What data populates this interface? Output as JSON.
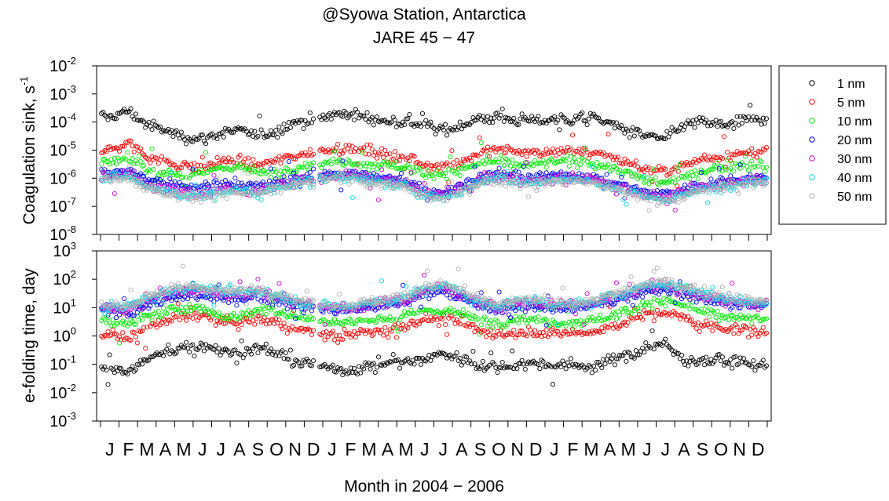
{
  "chart_data": {
    "type": "scatter",
    "title": "@Syowa Station, Antarctica",
    "subtitle": "JARE 45 − 47",
    "xlabel": "Month in 2004 − 2006",
    "month_labels": [
      "J",
      "F",
      "M",
      "A",
      "M",
      "J",
      "J",
      "A",
      "S",
      "O",
      "N",
      "D",
      "J",
      "F",
      "M",
      "A",
      "M",
      "J",
      "J",
      "A",
      "S",
      "O",
      "N",
      "D",
      "J",
      "F",
      "M",
      "A",
      "M",
      "J",
      "J",
      "A",
      "S",
      "O",
      "N",
      "D"
    ],
    "legend_position": "right",
    "legend": [
      {
        "name": "1 nm",
        "color": "#000000"
      },
      {
        "name": "5 nm",
        "color": "#ff0000"
      },
      {
        "name": "10 nm",
        "color": "#00ee00"
      },
      {
        "name": "20 nm",
        "color": "#0000ff"
      },
      {
        "name": "30 nm",
        "color": "#cc00cc"
      },
      {
        "name": "40 nm",
        "color": "#00dddd"
      },
      {
        "name": "50 nm",
        "color": "#b0b0b0"
      }
    ],
    "series_sizes_nm": [
      1,
      5,
      10,
      20,
      30,
      40,
      50
    ],
    "data_gaps": [
      [
        11.5,
        11.8
      ]
    ],
    "panels": [
      {
        "id": "coag",
        "ylabel": "Coagulation sink, s",
        "ylabel_sup": "-1",
        "yscale": "log",
        "ylim": [
          1e-08,
          0.01
        ],
        "ytick_labels": [
          {
            "base": "10",
            "exp": "-8"
          },
          {
            "base": "10",
            "exp": "-7"
          },
          {
            "base": "10",
            "exp": "-6"
          },
          {
            "base": "10",
            "exp": "-5"
          },
          {
            "base": "10",
            "exp": "-4"
          },
          {
            "base": "10",
            "exp": "-3"
          },
          {
            "base": "10",
            "exp": "-2"
          }
        ],
        "x": [
          0.5,
          1.5,
          2.5,
          3.5,
          4.5,
          5.5,
          6.5,
          7.5,
          8.5,
          9.5,
          10.5,
          11.5,
          12.5,
          13.5,
          14.5,
          15.5,
          16.5,
          17.5,
          18.5,
          19.5,
          20.5,
          21.5,
          22.5,
          23.5,
          24.5,
          25.5,
          26.5,
          27.5,
          28.5,
          29.5,
          30.5,
          31.5,
          32.5,
          33.5,
          34.5,
          35.5
        ],
        "series": [
          {
            "values": [
              0.00015,
              0.00025,
              8e-05,
              5e-05,
              3e-05,
              2.5e-05,
              4e-05,
              5e-05,
              3e-05,
              5e-05,
              0.0001,
              0.00012,
              0.00018,
              0.0002,
              0.00013,
              0.0001,
              0.0001,
              8e-05,
              5e-05,
              8e-05,
              0.00013,
              0.00015,
              0.00012,
              0.00011,
              0.00013,
              0.00012,
              0.00015,
              9e-05,
              5e-05,
              3e-05,
              2.5e-05,
              8e-05,
              0.0001,
              8e-05,
              0.0001,
              0.00013
            ],
            "spread": 0.15
          },
          {
            "values": [
              1e-05,
              1.8e-05,
              6e-06,
              4e-06,
              2.5e-06,
              2.5e-06,
              4e-06,
              4e-06,
              3e-06,
              4e-06,
              7e-06,
              8e-06,
              1.2e-05,
              1.1e-05,
              9e-06,
              7e-06,
              5e-06,
              3e-06,
              3e-06,
              4e-06,
              8e-06,
              1e-05,
              9e-06,
              8e-06,
              1e-05,
              9e-06,
              9e-06,
              6e-06,
              3.5e-06,
              2e-06,
              1.8e-06,
              3e-06,
              5e-06,
              6e-06,
              7e-06,
              9e-06
            ],
            "spread": 0.14
          },
          {
            "values": [
              3.5e-06,
              5e-06,
              2.2e-06,
              1.8e-06,
              1.2e-06,
              1.4e-06,
              2.5e-06,
              2.5e-06,
              1.6e-06,
              1.5e-06,
              2.5e-06,
              3e-06,
              4e-06,
              4e-06,
              3e-06,
              3e-06,
              2.5e-06,
              1.5e-06,
              1.5e-06,
              2e-06,
              3.5e-06,
              4e-06,
              3e-06,
              3e-06,
              4e-06,
              4e-06,
              3.5e-06,
              2.5e-06,
              1.5e-06,
              8e-07,
              7e-07,
              1e-06,
              1.8e-06,
              2.5e-06,
              3e-06,
              3e-06
            ],
            "spread": 0.13
          },
          {
            "values": [
              1.5e-06,
              2e-06,
              9e-07,
              7e-07,
              5e-07,
              5e-07,
              7e-07,
              6e-07,
              5e-07,
              7e-07,
              1e-06,
              1.2e-06,
              1.5e-06,
              1.6e-06,
              1.2e-06,
              1e-06,
              8e-07,
              4e-07,
              3e-07,
              6e-07,
              1.2e-06,
              1.5e-06,
              1.2e-06,
              1.1e-06,
              1.3e-06,
              1.3e-06,
              1.1e-06,
              8e-07,
              5e-07,
              3e-07,
              3e-07,
              4e-07,
              6e-07,
              8e-07,
              1e-06,
              1.1e-06
            ],
            "spread": 0.13
          },
          {
            "values": [
              1.2e-06,
              1.4e-06,
              6e-07,
              4e-07,
              3e-07,
              3e-07,
              4e-07,
              4e-07,
              3.5e-07,
              5e-07,
              8e-07,
              9e-07,
              1.2e-06,
              1.3e-06,
              9e-07,
              8e-07,
              6e-07,
              3e-07,
              2.5e-07,
              4e-07,
              9e-07,
              1.1e-06,
              9e-07,
              8e-07,
              1e-06,
              1e-06,
              9e-07,
              6e-07,
              4e-07,
              2.5e-07,
              2e-07,
              3e-07,
              5e-07,
              6e-07,
              8e-07,
              9e-07
            ],
            "spread": 0.13
          },
          {
            "values": [
              1.1e-06,
              1.2e-06,
              5e-07,
              3.5e-07,
              2.5e-07,
              2.5e-07,
              3.5e-07,
              3.5e-07,
              3e-07,
              4.5e-07,
              7e-07,
              8e-07,
              1.1e-06,
              1.1e-06,
              8e-07,
              7e-07,
              5e-07,
              2.5e-07,
              2e-07,
              3.5e-07,
              8e-07,
              1e-06,
              8e-07,
              7e-07,
              9e-07,
              9e-07,
              8e-07,
              5e-07,
              3.5e-07,
              2e-07,
              1.8e-07,
              2.5e-07,
              4e-07,
              5e-07,
              7e-07,
              8e-07
            ],
            "spread": 0.13
          },
          {
            "values": [
              1e-06,
              1.1e-06,
              4.5e-07,
              3e-07,
              2.2e-07,
              2.2e-07,
              3e-07,
              3e-07,
              2.8e-07,
              4e-07,
              6e-07,
              7e-07,
              1e-06,
              1e-06,
              7e-07,
              6e-07,
              4.5e-07,
              2.2e-07,
              1.8e-07,
              3e-07,
              7e-07,
              9e-07,
              7e-07,
              6e-07,
              8e-07,
              8e-07,
              7e-07,
              4.5e-07,
              3e-07,
              1.8e-07,
              1.6e-07,
              2.2e-07,
              3.5e-07,
              4.5e-07,
              6e-07,
              7e-07
            ],
            "spread": 0.13
          }
        ]
      },
      {
        "id": "efold",
        "ylabel": "e-folding time, day",
        "yscale": "log",
        "ylim": [
          0.001,
          1000.0
        ],
        "ytick_labels": [
          {
            "base": "10",
            "exp": "-3"
          },
          {
            "base": "10",
            "exp": "-2"
          },
          {
            "base": "10",
            "exp": "-1"
          },
          {
            "base": "10",
            "exp": "0"
          },
          {
            "base": "10",
            "exp": "1"
          },
          {
            "base": "10",
            "exp": "2"
          },
          {
            "base": "10",
            "exp": "3"
          }
        ],
        "x": [
          0.5,
          1.5,
          2.5,
          3.5,
          4.5,
          5.5,
          6.5,
          7.5,
          8.5,
          9.5,
          10.5,
          11.5,
          12.5,
          13.5,
          14.5,
          15.5,
          16.5,
          17.5,
          18.5,
          19.5,
          20.5,
          21.5,
          22.5,
          23.5,
          24.5,
          25.5,
          26.5,
          27.5,
          28.5,
          29.5,
          30.5,
          31.5,
          32.5,
          33.5,
          34.5,
          35.5
        ],
        "series": [
          {
            "values": [
              0.08,
              0.05,
              0.15,
              0.25,
              0.4,
              0.5,
              0.3,
              0.25,
              0.4,
              0.25,
              0.12,
              0.1,
              0.07,
              0.06,
              0.09,
              0.12,
              0.12,
              0.15,
              0.25,
              0.15,
              0.09,
              0.08,
              0.1,
              0.11,
              0.09,
              0.1,
              0.08,
              0.13,
              0.2,
              0.4,
              0.5,
              0.15,
              0.12,
              0.15,
              0.12,
              0.09
            ],
            "spread": 0.15
          },
          {
            "values": [
              1.2,
              0.7,
              2,
              3,
              5,
              5,
              3,
              3,
              4,
              3,
              1.7,
              1.5,
              1,
              1.1,
              1.3,
              1.7,
              2.3,
              4,
              4,
              3,
              1.5,
              1.2,
              1.3,
              1.5,
              1.2,
              1.3,
              1.3,
              2,
              3.5,
              6,
              7,
              4,
              2.5,
              2,
              1.7,
              1.3
            ],
            "spread": 0.14
          },
          {
            "values": [
              3.5,
              2.5,
              5,
              7,
              10,
              9,
              5,
              5,
              8,
              8,
              5,
              4,
              3,
              3,
              4,
              4,
              5,
              8,
              8,
              6,
              3.5,
              3,
              4,
              4,
              3,
              3,
              3.5,
              5,
              8,
              15,
              18,
              12,
              7,
              5,
              4,
              4
            ],
            "spread": 0.13
          },
          {
            "values": [
              8,
              6,
              13,
              18,
              25,
              25,
              18,
              20,
              25,
              18,
              12,
              10,
              8,
              8,
              10,
              12,
              15,
              30,
              40,
              20,
              10,
              8,
              10,
              11,
              9,
              9,
              11,
              15,
              25,
              40,
              40,
              30,
              20,
              15,
              12,
              11
            ],
            "spread": 0.13
          },
          {
            "values": [
              10,
              9,
              20,
              30,
              40,
              40,
              30,
              30,
              35,
              25,
              15,
              13,
              10,
              9,
              13,
              15,
              20,
              40,
              50,
              30,
              13,
              11,
              13,
              15,
              12,
              12,
              13,
              20,
              30,
              50,
              60,
              40,
              25,
              20,
              15,
              13
            ],
            "spread": 0.13
          },
          {
            "values": [
              11,
              10,
              24,
              35,
              50,
              50,
              35,
              35,
              40,
              28,
              17,
              14,
              11,
              11,
              15,
              17,
              24,
              50,
              60,
              35,
              15,
              12,
              15,
              17,
              13,
              13,
              15,
              24,
              35,
              60,
              70,
              50,
              30,
              24,
              17,
              15
            ],
            "spread": 0.13
          },
          {
            "values": [
              12,
              11,
              27,
              40,
              55,
              55,
              40,
              40,
              45,
              32,
              19,
              16,
              12,
              12,
              17,
              19,
              27,
              55,
              70,
              40,
              17,
              13,
              17,
              19,
              15,
              15,
              17,
              27,
              40,
              70,
              80,
              55,
              35,
              27,
              19,
              17
            ],
            "spread": 0.13
          }
        ]
      }
    ]
  }
}
